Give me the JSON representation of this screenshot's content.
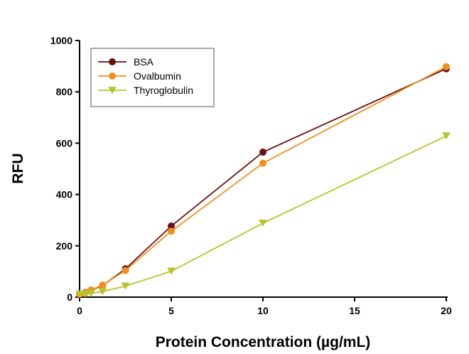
{
  "chart_data": {
    "type": "line",
    "title": "",
    "xlabel": "Protein Concentration (µg/mL)",
    "ylabel": "RFU",
    "xlim": [
      0,
      20
    ],
    "ylim": [
      0,
      1000
    ],
    "xticks": [
      0,
      5,
      10,
      15,
      20
    ],
    "yticks": [
      0,
      200,
      400,
      600,
      800,
      1000
    ],
    "grid": false,
    "legend_position": "top-left",
    "x": [
      0,
      0.3125,
      0.625,
      1.25,
      2.5,
      5,
      10,
      20
    ],
    "series": [
      {
        "name": "BSA",
        "marker": "circle",
        "color": "#6b0f0f",
        "values": [
          12,
          18,
          27,
          45,
          110,
          277,
          565,
          890
        ]
      },
      {
        "name": "Ovalbumin",
        "marker": "circle",
        "color": "#f0901e",
        "values": [
          12,
          17,
          28,
          47,
          104,
          257,
          522,
          898
        ]
      },
      {
        "name": "Thyroglobulin",
        "marker": "triangle-down",
        "color": "#b8c42a",
        "values": [
          10,
          12,
          15,
          22,
          43,
          101,
          288,
          628
        ]
      }
    ]
  }
}
